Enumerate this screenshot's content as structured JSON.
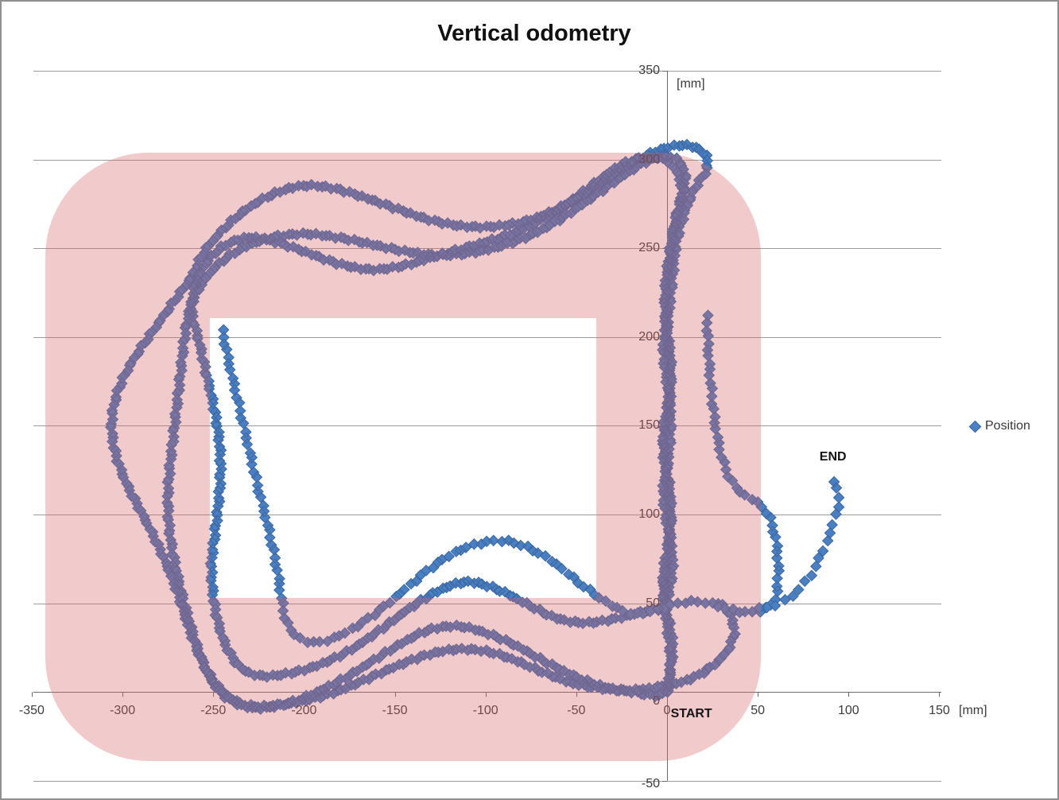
{
  "title": "Vertical odometry",
  "legend": {
    "label": "Position"
  },
  "annotations": {
    "start_label": "START",
    "end_label": "END",
    "start_anchor_mm": [
      2,
      -13
    ],
    "end_anchor_mm": [
      84,
      132
    ]
  },
  "axes": {
    "x": {
      "unit": "[mm]",
      "ticks": [
        -350,
        -300,
        -250,
        -200,
        -150,
        -100,
        -50,
        0,
        50,
        100,
        150
      ],
      "range": [
        -350,
        150
      ]
    },
    "y": {
      "unit": "[mm]",
      "ticks": [
        350,
        300,
        250,
        200,
        150,
        100,
        50,
        0,
        -50
      ],
      "range": [
        -50,
        350
      ]
    }
  },
  "colors": {
    "marker_fill": "#4a7fc1",
    "marker_stroke": "#3a67a3",
    "track_overlay_rgba": "rgba(214,99,105,0.34)",
    "gridline": "#9b9b9b",
    "axis": "#6b6b6b",
    "text": "#3b3b3b"
  },
  "chart_data": {
    "type": "scatter",
    "series": [
      {
        "name": "Position",
        "marker": "diamond"
      }
    ],
    "title": "Vertical odometry",
    "xlabel": "[mm]",
    "ylabel": "[mm]",
    "xlim": [
      -350,
      150
    ],
    "ylim": [
      -50,
      350
    ],
    "grid": "horizontal",
    "legend_position": "right",
    "start_point_mm": [
      0,
      0
    ],
    "end_point_mm": [
      90,
      122
    ],
    "track_overlay_mm": {
      "comment": "translucent rounded-rect ring drawn over the points; hole shows white",
      "outer": {
        "x": [
          -342.5,
          51.7
        ],
        "y": [
          -38.9,
          303.8
        ],
        "corner_radius": 57
      },
      "hole": {
        "x": [
          -251.9,
          -39.0
        ],
        "y": [
          53.0,
          210.6
        ]
      }
    },
    "trajectory_mm": {
      "comment": "waypoints of the odometry path; markers are stamped along a spline through these points",
      "laps": [
        [
          0,
          0
        ],
        [
          2,
          18
        ],
        [
          0,
          38
        ],
        [
          -2,
          58
        ],
        [
          1,
          78
        ],
        [
          2,
          98
        ],
        [
          0,
          118
        ],
        [
          -2,
          138
        ],
        [
          1,
          158
        ],
        [
          2,
          178
        ],
        [
          0,
          198
        ],
        [
          -1,
          218
        ],
        [
          1,
          238
        ],
        [
          3,
          256
        ],
        [
          6,
          272
        ],
        [
          10,
          286
        ],
        [
          8,
          297
        ],
        [
          0,
          302
        ],
        [
          -11,
          299
        ],
        [
          -24,
          291
        ],
        [
          -38,
          281
        ],
        [
          -52,
          271
        ],
        [
          -68,
          261
        ],
        [
          -86,
          253
        ],
        [
          -105,
          248
        ],
        [
          -124,
          246
        ],
        [
          -143,
          248
        ],
        [
          -162,
          252
        ],
        [
          -181,
          256
        ],
        [
          -200,
          258
        ],
        [
          -218,
          256
        ],
        [
          -234,
          250
        ],
        [
          -247,
          241
        ],
        [
          -257,
          229
        ],
        [
          -263,
          215
        ],
        [
          -266,
          198
        ],
        [
          -268,
          180
        ],
        [
          -270,
          162
        ],
        [
          -272,
          144
        ],
        [
          -274,
          126
        ],
        [
          -275,
          108
        ],
        [
          -274,
          90
        ],
        [
          -271,
          72
        ],
        [
          -267,
          54
        ],
        [
          -262,
          36
        ],
        [
          -257,
          20
        ],
        [
          -250,
          5
        ],
        [
          -240,
          -5
        ],
        [
          -227,
          -9
        ],
        [
          -211,
          -7
        ],
        [
          -195,
          -1
        ],
        [
          -179,
          7
        ],
        [
          -163,
          17
        ],
        [
          -147,
          27
        ],
        [
          -131,
          35
        ],
        [
          -115,
          37
        ],
        [
          -99,
          33
        ],
        [
          -83,
          26
        ],
        [
          -67,
          17
        ],
        [
          -51,
          9
        ],
        [
          -35,
          3
        ],
        [
          -19,
          0
        ],
        [
          -5,
          -2
        ],
        [
          1,
          2
        ],
        [
          1,
          8
        ],
        [
          3,
          26
        ],
        [
          0,
          46
        ],
        [
          -2,
          66
        ],
        [
          1,
          86
        ],
        [
          2,
          106
        ],
        [
          0,
          126
        ],
        [
          -2,
          146
        ],
        [
          1,
          166
        ],
        [
          2,
          186
        ],
        [
          0,
          206
        ],
        [
          -1,
          226
        ],
        [
          1,
          244
        ],
        [
          4,
          262
        ],
        [
          8,
          278
        ],
        [
          6,
          292
        ],
        [
          -2,
          300
        ],
        [
          -13,
          301
        ],
        [
          -25,
          297
        ],
        [
          -38,
          288
        ],
        [
          -51,
          278
        ],
        [
          -64,
          269
        ],
        [
          -79,
          261
        ],
        [
          -95,
          255
        ],
        [
          -112,
          250
        ],
        [
          -129,
          245
        ],
        [
          -146,
          240
        ],
        [
          -163,
          238
        ],
        [
          -180,
          241
        ],
        [
          -197,
          247
        ],
        [
          -214,
          253
        ],
        [
          -230,
          256
        ],
        [
          -243,
          252
        ],
        [
          -252,
          244
        ],
        [
          -259,
          232
        ],
        [
          -262,
          216
        ],
        [
          -258,
          198
        ],
        [
          -254,
          180
        ],
        [
          -250,
          162
        ],
        [
          -247,
          144
        ],
        [
          -246,
          126
        ],
        [
          -247,
          108
        ],
        [
          -249,
          90
        ],
        [
          -251,
          72
        ],
        [
          -250,
          54
        ],
        [
          -247,
          38
        ],
        [
          -242,
          24
        ],
        [
          -234,
          13
        ],
        [
          -222,
          9
        ],
        [
          -206,
          11
        ],
        [
          -190,
          16
        ],
        [
          -174,
          24
        ],
        [
          -158,
          35
        ],
        [
          -142,
          47
        ],
        [
          -126,
          57
        ],
        [
          -110,
          62
        ],
        [
          -94,
          58
        ],
        [
          -78,
          50
        ],
        [
          -62,
          42
        ],
        [
          -46,
          39
        ],
        [
          -30,
          41
        ],
        [
          -14,
          45
        ],
        [
          -2,
          48
        ],
        [
          1,
          56
        ],
        [
          3,
          74
        ],
        [
          0,
          94
        ],
        [
          -2,
          114
        ],
        [
          1,
          134
        ],
        [
          2,
          154
        ],
        [
          0,
          174
        ],
        [
          -2,
          194
        ],
        [
          1,
          214
        ],
        [
          3,
          234
        ],
        [
          5,
          252
        ],
        [
          9,
          268
        ],
        [
          15,
          283
        ],
        [
          22,
          295
        ],
        [
          20,
          304
        ],
        [
          10,
          308
        ],
        [
          -2,
          306
        ],
        [
          -14,
          301
        ],
        [
          -27,
          293
        ],
        [
          -40,
          284
        ],
        [
          -53,
          276
        ],
        [
          -67,
          269
        ],
        [
          -83,
          264
        ],
        [
          -100,
          262
        ],
        [
          -117,
          263
        ],
        [
          -134,
          267
        ],
        [
          -151,
          273
        ],
        [
          -168,
          279
        ],
        [
          -185,
          284
        ],
        [
          -202,
          285
        ],
        [
          -218,
          280
        ],
        [
          -233,
          271
        ],
        [
          -245,
          260
        ],
        [
          -255,
          248
        ],
        [
          -262,
          234
        ],
        [
          -271,
          221
        ],
        [
          -280,
          208
        ],
        [
          -289,
          195
        ],
        [
          -297,
          182
        ],
        [
          -303,
          168
        ],
        [
          -306,
          152
        ],
        [
          -304,
          135
        ],
        [
          -298,
          118
        ],
        [
          -290,
          102
        ],
        [
          -282,
          86
        ],
        [
          -275,
          70
        ],
        [
          -269,
          54
        ],
        [
          -264,
          38
        ],
        [
          -258,
          22
        ],
        [
          -251,
          8
        ],
        [
          -241,
          -3
        ],
        [
          -228,
          -8
        ],
        [
          -212,
          -7
        ],
        [
          -196,
          -4
        ],
        [
          -180,
          1
        ],
        [
          -164,
          8
        ],
        [
          -148,
          15
        ],
        [
          -132,
          21
        ],
        [
          -116,
          24
        ],
        [
          -100,
          23
        ],
        [
          -84,
          18
        ],
        [
          -68,
          11
        ],
        [
          -52,
          5
        ],
        [
          -36,
          2
        ],
        [
          -20,
          1
        ],
        [
          -4,
          3
        ],
        [
          12,
          7
        ],
        [
          24,
          14
        ],
        [
          33,
          23
        ],
        [
          37,
          34
        ],
        [
          34,
          45
        ],
        [
          27,
          51
        ]
      ],
      "final_segment": [
        [
          22,
          212
        ],
        [
          23,
          188
        ],
        [
          25,
          164
        ],
        [
          28,
          142
        ],
        [
          33,
          124
        ],
        [
          40,
          113
        ],
        [
          48,
          108
        ],
        [
          55,
          101
        ],
        [
          59,
          90
        ],
        [
          61,
          76
        ],
        [
          61,
          62
        ],
        [
          59,
          51
        ],
        [
          52,
          46
        ],
        [
          43,
          45
        ],
        [
          33,
          47
        ],
        [
          23,
          50
        ],
        [
          13,
          51
        ],
        [
          3,
          49
        ],
        [
          -7,
          46
        ],
        [
          -17,
          44
        ],
        [
          -27,
          47
        ],
        [
          -37,
          53
        ],
        [
          -49,
          62
        ],
        [
          -61,
          72
        ],
        [
          -74,
          80
        ],
        [
          -88,
          85
        ],
        [
          -102,
          84
        ],
        [
          -116,
          79
        ],
        [
          -130,
          70
        ],
        [
          -143,
          59
        ],
        [
          -156,
          48
        ],
        [
          -168,
          39
        ],
        [
          -180,
          32
        ],
        [
          -192,
          28
        ],
        [
          -202,
          30
        ],
        [
          -209,
          38
        ],
        [
          -212,
          50
        ],
        [
          -214,
          64
        ],
        [
          -217,
          80
        ],
        [
          -221,
          98
        ],
        [
          -226,
          118
        ],
        [
          -231,
          140
        ],
        [
          -236,
          162
        ],
        [
          -241,
          184
        ],
        [
          -245,
          204
        ]
      ],
      "end_approach": [
        [
          50,
          47
        ],
        [
          57,
          48
        ],
        [
          64,
          51
        ],
        [
          71,
          56
        ],
        [
          77,
          63
        ],
        [
          82,
          71
        ],
        [
          86,
          80
        ],
        [
          90,
          90
        ],
        [
          93,
          100
        ],
        [
          95,
          110
        ],
        [
          93,
          116
        ],
        [
          90,
          122
        ]
      ],
      "marker_spacing_px": {
        "laps": 5.2,
        "final_segment": 8.0,
        "end_approach": 11.0
      },
      "marker_half_px": 6.6
    }
  }
}
